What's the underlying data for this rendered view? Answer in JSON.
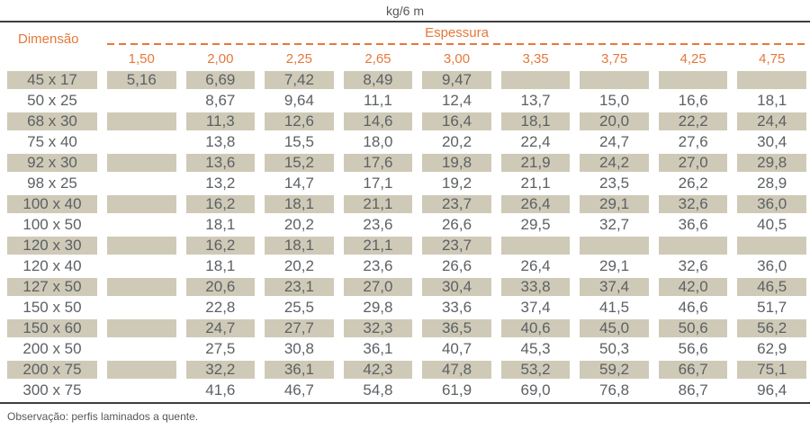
{
  "title": "kg/6 m",
  "footer": "Observação: perfis laminados a quente.",
  "colors": {
    "accent_orange": "#e5783a",
    "cell_beige": "#cfcab7",
    "text_gray": "#5c6165",
    "rule_dark": "#3d3e40"
  },
  "table": {
    "dimension_header": "Dimensão",
    "thickness_header": "Espessura",
    "columns": [
      "1,50",
      "2,00",
      "2,25",
      "2,65",
      "3,00",
      "3,35",
      "3,75",
      "4,25",
      "4,75"
    ],
    "rows": [
      {
        "dimension": "45 x 17",
        "values": [
          "5,16",
          "6,69",
          "7,42",
          "8,49",
          "9,47",
          "",
          "",
          "",
          ""
        ]
      },
      {
        "dimension": "50 x 25",
        "values": [
          "",
          "8,67",
          "9,64",
          "11,1",
          "12,4",
          "13,7",
          "15,0",
          "16,6",
          "18,1"
        ]
      },
      {
        "dimension": "68 x 30",
        "values": [
          "",
          "11,3",
          "12,6",
          "14,6",
          "16,4",
          "18,1",
          "20,0",
          "22,2",
          "24,4"
        ]
      },
      {
        "dimension": "75 x 40",
        "values": [
          "",
          "13,8",
          "15,5",
          "18,0",
          "20,2",
          "22,4",
          "24,7",
          "27,6",
          "30,4"
        ]
      },
      {
        "dimension": "92 x 30",
        "values": [
          "",
          "13,6",
          "15,2",
          "17,6",
          "19,8",
          "21,9",
          "24,2",
          "27,0",
          "29,8"
        ]
      },
      {
        "dimension": "98 x 25",
        "values": [
          "",
          "13,2",
          "14,7",
          "17,1",
          "19,2",
          "21,1",
          "23,5",
          "26,2",
          "28,9"
        ]
      },
      {
        "dimension": "100 x 40",
        "values": [
          "",
          "16,2",
          "18,1",
          "21,1",
          "23,7",
          "26,4",
          "29,1",
          "32,6",
          "36,0"
        ]
      },
      {
        "dimension": "100 x 50",
        "values": [
          "",
          "18,1",
          "20,2",
          "23,6",
          "26,6",
          "29,5",
          "32,7",
          "36,6",
          "40,5"
        ]
      },
      {
        "dimension": "120 x 30",
        "values": [
          "",
          "16,2",
          "18,1",
          "21,1",
          "23,7",
          "",
          "",
          "",
          ""
        ]
      },
      {
        "dimension": "120 x 40",
        "values": [
          "",
          "18,1",
          "20,2",
          "23,6",
          "26,6",
          "26,4",
          "29,1",
          "32,6",
          "36,0"
        ]
      },
      {
        "dimension": "127 x 50",
        "values": [
          "",
          "20,6",
          "23,1",
          "27,0",
          "30,4",
          "33,8",
          "37,4",
          "42,0",
          "46,5"
        ]
      },
      {
        "dimension": "150 x 50",
        "values": [
          "",
          "22,8",
          "25,5",
          "29,8",
          "33,6",
          "37,4",
          "41,5",
          "46,6",
          "51,7"
        ]
      },
      {
        "dimension": "150 x 60",
        "values": [
          "",
          "24,7",
          "27,7",
          "32,3",
          "36,5",
          "40,6",
          "45,0",
          "50,6",
          "56,2"
        ]
      },
      {
        "dimension": "200 x 50",
        "values": [
          "",
          "27,5",
          "30,8",
          "36,1",
          "40,7",
          "45,3",
          "50,3",
          "56,6",
          "62,9"
        ]
      },
      {
        "dimension": "200 x 75",
        "values": [
          "",
          "32,2",
          "36,1",
          "42,3",
          "47,8",
          "53,2",
          "59,2",
          "66,7",
          "75,1"
        ]
      },
      {
        "dimension": "300 x 75",
        "values": [
          "",
          "41,6",
          "46,7",
          "54,8",
          "61,9",
          "69,0",
          "76,8",
          "86,7",
          "96,4"
        ]
      }
    ]
  }
}
